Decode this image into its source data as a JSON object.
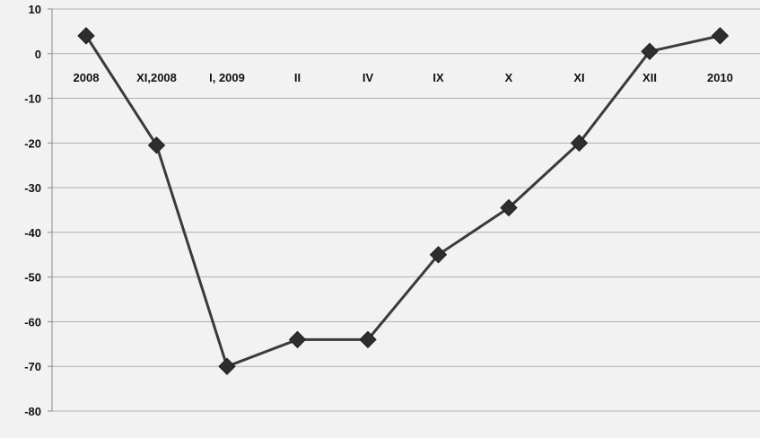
{
  "chart_data": {
    "type": "line",
    "title": "",
    "xlabel": "",
    "ylabel": "",
    "categories": [
      "2008",
      "XI,2008",
      "I, 2009",
      "II",
      "IV",
      "IX",
      "X",
      "XI",
      "XII",
      "2010"
    ],
    "series": [
      {
        "values": [
          4,
          -20.5,
          -70,
          -64,
          -64,
          -45,
          -34.5,
          -20,
          0.5,
          4
        ]
      }
    ],
    "ylim": [
      -80,
      10
    ],
    "yticks": [
      10,
      0,
      -10,
      -20,
      -30,
      -40,
      -50,
      -60,
      -70,
      -80
    ],
    "ytick_labels": [
      "10",
      "0",
      "-10",
      "-20",
      "-30",
      "-40",
      "-50",
      "-60",
      "-70",
      "-80"
    ],
    "grid": true,
    "legend": "none",
    "marker": "diamond",
    "line_color": "#3a3a3a",
    "marker_color": "#2e2e2e",
    "grid_color": "#b0b0b0",
    "plot_background": "#f2f2f2"
  }
}
